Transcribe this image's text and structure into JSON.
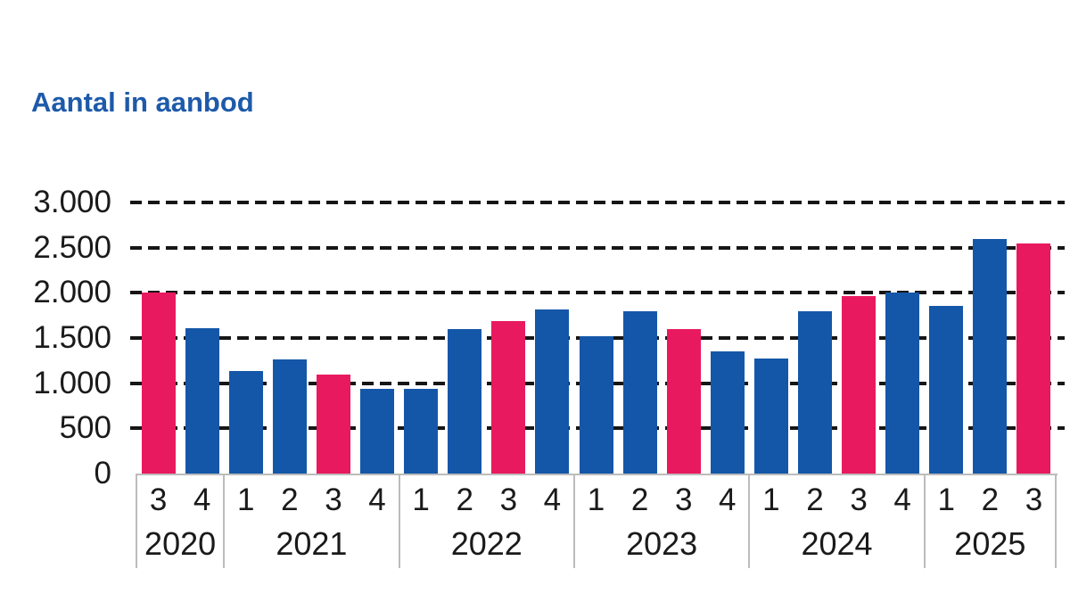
{
  "title": "Aantal in aanbod",
  "colors": {
    "title_text": "#1d5aa9",
    "bar_blue": "#1457a8",
    "bar_pink": "#e8195f",
    "grid_line": "#161616",
    "axis_text": "#1a1a1a",
    "axis_border": "#bcbcbc",
    "background": "#ffffff"
  },
  "chart_data": {
    "type": "bar",
    "title": "Aantal in aanbod",
    "xlabel": "",
    "ylabel": "",
    "ylim": [
      0,
      3000
    ],
    "grid": "horizontal-dashed",
    "legend": "none",
    "highlight_note": "third-quarter bars drawn in pink, all other quarters in blue",
    "y_ticks": [
      {
        "label": "3.000",
        "value": 3000
      },
      {
        "label": "2.500",
        "value": 2500
      },
      {
        "label": "2.000",
        "value": 2000
      },
      {
        "label": "1.500",
        "value": 1500
      },
      {
        "label": "1.000",
        "value": 1000
      },
      {
        "label": "500",
        "value": 500
      },
      {
        "label": "0",
        "value": 0
      }
    ],
    "groups": [
      {
        "year": "2020",
        "bars": [
          {
            "quarter": "3",
            "value": 2000,
            "highlight": true
          },
          {
            "quarter": "4",
            "value": 1610,
            "highlight": false
          }
        ]
      },
      {
        "year": "2021",
        "bars": [
          {
            "quarter": "1",
            "value": 1130,
            "highlight": false
          },
          {
            "quarter": "2",
            "value": 1260,
            "highlight": false
          },
          {
            "quarter": "3",
            "value": 1100,
            "highlight": true
          },
          {
            "quarter": "4",
            "value": 940,
            "highlight": false
          }
        ]
      },
      {
        "year": "2022",
        "bars": [
          {
            "quarter": "1",
            "value": 940,
            "highlight": false
          },
          {
            "quarter": "2",
            "value": 1600,
            "highlight": false
          },
          {
            "quarter": "3",
            "value": 1690,
            "highlight": true
          },
          {
            "quarter": "4",
            "value": 1820,
            "highlight": false
          }
        ]
      },
      {
        "year": "2023",
        "bars": [
          {
            "quarter": "1",
            "value": 1520,
            "highlight": false
          },
          {
            "quarter": "2",
            "value": 1800,
            "highlight": false
          },
          {
            "quarter": "3",
            "value": 1600,
            "highlight": true
          },
          {
            "quarter": "4",
            "value": 1350,
            "highlight": false
          }
        ]
      },
      {
        "year": "2024",
        "bars": [
          {
            "quarter": "1",
            "value": 1270,
            "highlight": false
          },
          {
            "quarter": "2",
            "value": 1800,
            "highlight": false
          },
          {
            "quarter": "3",
            "value": 1960,
            "highlight": true
          },
          {
            "quarter": "4",
            "value": 2000,
            "highlight": false
          }
        ]
      },
      {
        "year": "2025",
        "bars": [
          {
            "quarter": "1",
            "value": 1860,
            "highlight": false
          },
          {
            "quarter": "2",
            "value": 2600,
            "highlight": false
          },
          {
            "quarter": "3",
            "value": 2550,
            "highlight": true
          }
        ]
      }
    ]
  }
}
